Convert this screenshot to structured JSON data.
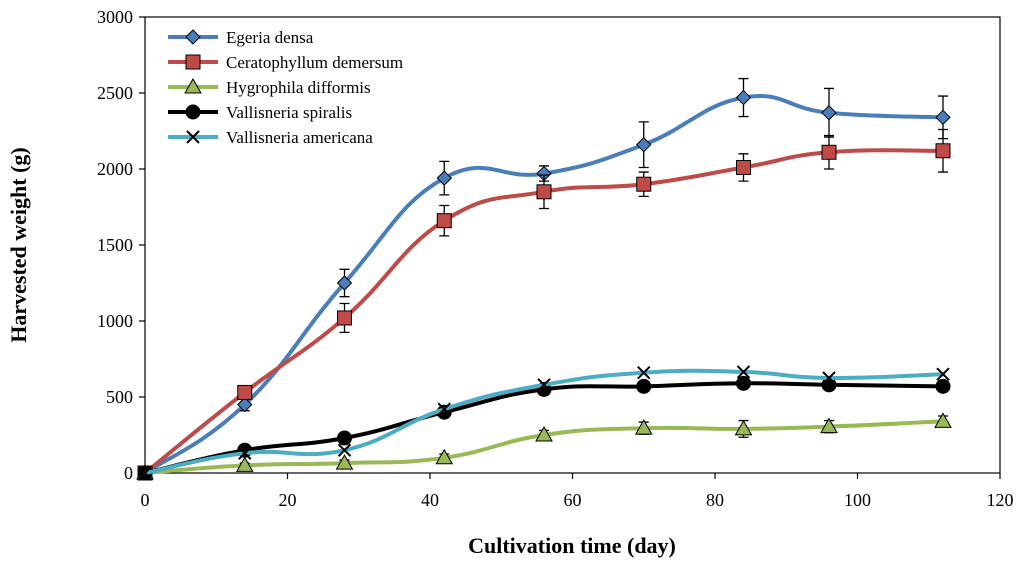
{
  "chart_data": {
    "type": "line",
    "title": "",
    "xlabel": "Cultivation time (day)",
    "ylabel": "Harvested weight (g)",
    "xlim": [
      0,
      120
    ],
    "ylim": [
      0,
      3000
    ],
    "xticks": [
      "0",
      "20",
      "40",
      "60",
      "80",
      "100",
      "120"
    ],
    "yticks": [
      "0",
      "500",
      "1000",
      "1500",
      "2000",
      "2500",
      "3000"
    ],
    "grid": false,
    "legend_position": "top-left",
    "x": [
      0,
      14,
      28,
      42,
      56,
      70,
      84,
      96,
      112
    ],
    "series": [
      {
        "name": "Egeria densa",
        "color": "#4A7EBB",
        "marker": "diamond",
        "values": [
          0,
          450,
          1250,
          1940,
          1970,
          2160,
          2470,
          2370,
          2340
        ],
        "errors": [
          0,
          40,
          90,
          110,
          50,
          150,
          125,
          160,
          140
        ]
      },
      {
        "name": "Ceratophyllum demersum",
        "color": "#BE4B48",
        "marker": "square",
        "values": [
          0,
          530,
          1020,
          1660,
          1850,
          1900,
          2010,
          2110,
          2120
        ],
        "errors": [
          0,
          40,
          95,
          100,
          110,
          80,
          90,
          110,
          140
        ]
      },
      {
        "name": "Hygrophila difformis",
        "color": "#98B954",
        "marker": "triangle",
        "values": [
          0,
          50,
          65,
          100,
          250,
          295,
          290,
          305,
          340
        ],
        "errors": [
          0,
          15,
          20,
          25,
          30,
          40,
          55,
          40,
          35
        ]
      },
      {
        "name": "Vallisneria spiralis",
        "color": "#000000",
        "marker": "circle",
        "values": [
          0,
          150,
          230,
          400,
          550,
          570,
          590,
          580,
          570
        ],
        "errors": [
          0,
          0,
          0,
          0,
          0,
          0,
          0,
          0,
          0
        ]
      },
      {
        "name": "Vallisneria americana",
        "color": "#4BACC6",
        "marker": "cross",
        "values": [
          0,
          130,
          150,
          420,
          580,
          660,
          665,
          625,
          650
        ],
        "errors": [
          0,
          0,
          0,
          0,
          0,
          0,
          0,
          0,
          0
        ]
      }
    ]
  }
}
